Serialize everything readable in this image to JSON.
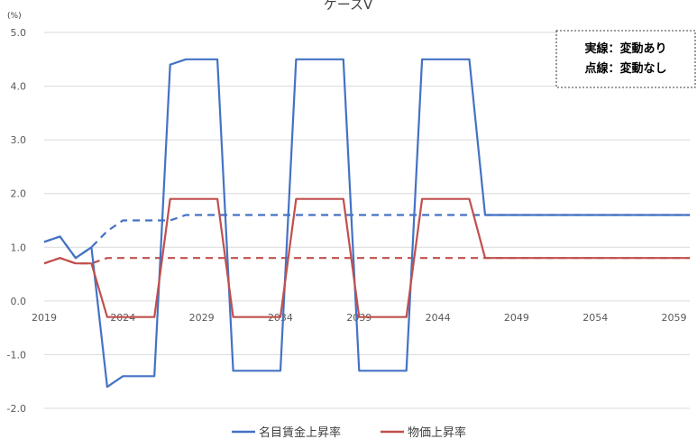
{
  "chart_data": {
    "type": "line",
    "title": "ケースⅤ",
    "unit_label": "(%)",
    "ylim": [
      -2.0,
      5.0
    ],
    "yticks": [
      "5.0",
      "4.0",
      "3.0",
      "2.0",
      "1.0",
      "0.0",
      "-1.0",
      "-2.0"
    ],
    "ytick_values": [
      5,
      4,
      3,
      2,
      1,
      0,
      -1,
      -2
    ],
    "xticks": [
      "2019",
      "2024",
      "2029",
      "2034",
      "2039",
      "2044",
      "2049",
      "2054",
      "2059"
    ],
    "xtick_values": [
      2019,
      2024,
      2029,
      2034,
      2039,
      2044,
      2049,
      2054,
      2059
    ],
    "xlim": [
      2019,
      2060
    ],
    "grid": true,
    "annotation": {
      "line1": "実線：変動あり",
      "line2": "点線：変動なし"
    },
    "legend": {
      "position": "bottom",
      "entries": [
        "名目賃金上昇率",
        "物価上昇率"
      ]
    },
    "series": [
      {
        "name": "名目賃金上昇率",
        "style": "solid",
        "color": "#4472C4",
        "x": [
          2019,
          2020,
          2021,
          2022,
          2023,
          2024,
          2025,
          2026,
          2027,
          2028,
          2029,
          2030,
          2031,
          2032,
          2033,
          2034,
          2035,
          2036,
          2037,
          2038,
          2039,
          2040,
          2041,
          2042,
          2043,
          2044,
          2045,
          2046,
          2047,
          2048,
          2049,
          2050,
          2051,
          2052,
          2053,
          2054,
          2055,
          2056,
          2057,
          2058,
          2059,
          2060
        ],
        "values": [
          1.1,
          1.2,
          0.8,
          1.0,
          -1.6,
          -1.4,
          -1.4,
          -1.4,
          4.4,
          4.5,
          4.5,
          4.5,
          -1.3,
          -1.3,
          -1.3,
          -1.3,
          4.5,
          4.5,
          4.5,
          4.5,
          -1.3,
          -1.3,
          -1.3,
          -1.3,
          4.5,
          4.5,
          4.5,
          4.5,
          1.6,
          1.6,
          1.6,
          1.6,
          1.6,
          1.6,
          1.6,
          1.6,
          1.6,
          1.6,
          1.6,
          1.6,
          1.6,
          1.6
        ]
      },
      {
        "name": "物価上昇率",
        "style": "solid",
        "color": "#C0504D",
        "x": [
          2019,
          2020,
          2021,
          2022,
          2023,
          2024,
          2025,
          2026,
          2027,
          2028,
          2029,
          2030,
          2031,
          2032,
          2033,
          2034,
          2035,
          2036,
          2037,
          2038,
          2039,
          2040,
          2041,
          2042,
          2043,
          2044,
          2045,
          2046,
          2047,
          2048,
          2049,
          2050,
          2051,
          2052,
          2053,
          2054,
          2055,
          2056,
          2057,
          2058,
          2059,
          2060
        ],
        "values": [
          0.7,
          0.8,
          0.7,
          0.7,
          -0.3,
          -0.3,
          -0.3,
          -0.3,
          1.9,
          1.9,
          1.9,
          1.9,
          -0.3,
          -0.3,
          -0.3,
          -0.3,
          1.9,
          1.9,
          1.9,
          1.9,
          -0.3,
          -0.3,
          -0.3,
          -0.3,
          1.9,
          1.9,
          1.9,
          1.9,
          0.8,
          0.8,
          0.8,
          0.8,
          0.8,
          0.8,
          0.8,
          0.8,
          0.8,
          0.8,
          0.8,
          0.8,
          0.8,
          0.8
        ]
      },
      {
        "style": "dashed",
        "color": "#4472C4",
        "x": [
          2019,
          2020,
          2021,
          2022,
          2023,
          2024,
          2025,
          2026,
          2027,
          2028,
          2029,
          2030,
          2031,
          2032,
          2033,
          2034,
          2035,
          2036,
          2037,
          2038,
          2039,
          2040,
          2041,
          2042,
          2043,
          2044,
          2045,
          2046,
          2047,
          2048,
          2049,
          2050,
          2051,
          2052,
          2053,
          2054,
          2055,
          2056,
          2057,
          2058,
          2059,
          2060
        ],
        "values": [
          1.1,
          1.2,
          0.8,
          1.0,
          1.3,
          1.5,
          1.5,
          1.5,
          1.5,
          1.6,
          1.6,
          1.6,
          1.6,
          1.6,
          1.6,
          1.6,
          1.6,
          1.6,
          1.6,
          1.6,
          1.6,
          1.6,
          1.6,
          1.6,
          1.6,
          1.6,
          1.6,
          1.6,
          1.6,
          1.6,
          1.6,
          1.6,
          1.6,
          1.6,
          1.6,
          1.6,
          1.6,
          1.6,
          1.6,
          1.6,
          1.6,
          1.6
        ]
      },
      {
        "style": "dashed",
        "color": "#C0504D",
        "x": [
          2019,
          2020,
          2021,
          2022,
          2023,
          2024,
          2025,
          2026,
          2027,
          2028,
          2029,
          2030,
          2031,
          2032,
          2033,
          2034,
          2035,
          2036,
          2037,
          2038,
          2039,
          2040,
          2041,
          2042,
          2043,
          2044,
          2045,
          2046,
          2047,
          2048,
          2049,
          2050,
          2051,
          2052,
          2053,
          2054,
          2055,
          2056,
          2057,
          2058,
          2059,
          2060
        ],
        "values": [
          0.7,
          0.8,
          0.7,
          0.7,
          0.8,
          0.8,
          0.8,
          0.8,
          0.8,
          0.8,
          0.8,
          0.8,
          0.8,
          0.8,
          0.8,
          0.8,
          0.8,
          0.8,
          0.8,
          0.8,
          0.8,
          0.8,
          0.8,
          0.8,
          0.8,
          0.8,
          0.8,
          0.8,
          0.8,
          0.8,
          0.8,
          0.8,
          0.8,
          0.8,
          0.8,
          0.8,
          0.8,
          0.8,
          0.8,
          0.8,
          0.8,
          0.8
        ]
      }
    ]
  }
}
